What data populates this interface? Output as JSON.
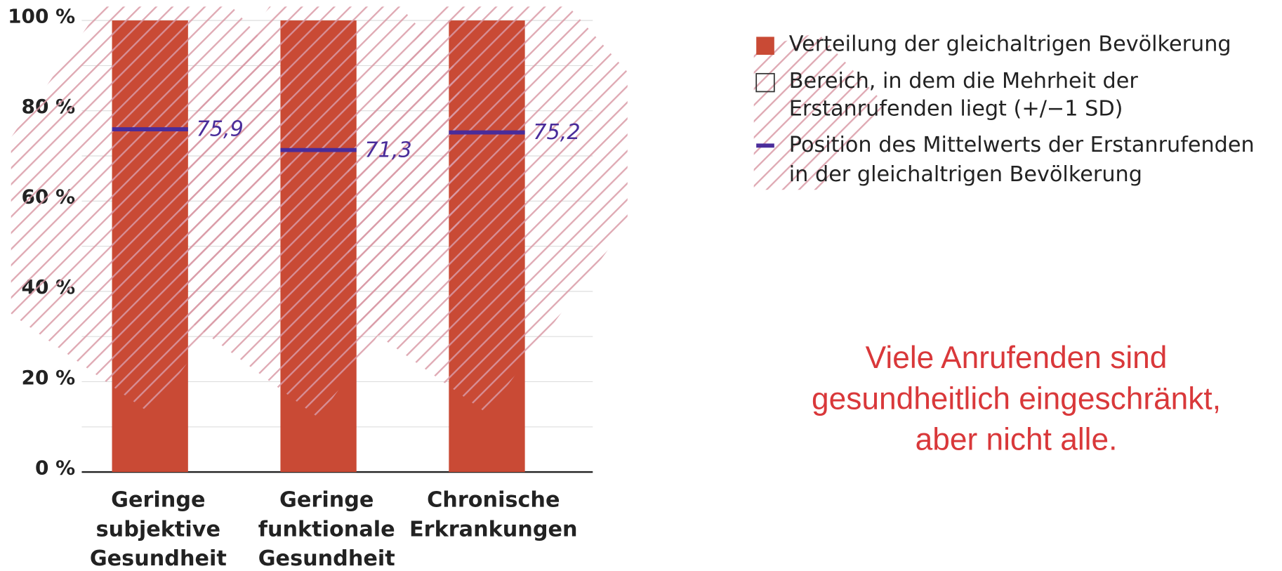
{
  "chart_data": {
    "type": "bar",
    "categories": [
      [
        "Geringe",
        "subjektive",
        "Gesundheit"
      ],
      [
        "Geringe",
        "funktionale",
        "Gesundheit"
      ],
      [
        "Chronische",
        "Erkrankungen"
      ]
    ],
    "series": [
      {
        "name": "Verteilung der gleichaltrigen Bevölkerung",
        "color": "#c94a35",
        "values": [
          100,
          100,
          100
        ]
      },
      {
        "name": [
          "Bereich, in dem die Mehrheit der",
          "Erstanrufenden liegt (+/−1 SD)"
        ],
        "color": "#d99aa6",
        "range_low": [
          13,
          12,
          13
        ],
        "range_high": [
          100,
          100,
          100
        ]
      },
      {
        "name": [
          "Position des Mittelwerts der Erstanrufenden",
          "in der gleichaltrigen Bevölkerung"
        ],
        "color": "#4a2c9a",
        "values": [
          75.9,
          71.3,
          75.2
        ],
        "value_labels": [
          "75,9",
          "71,3",
          "75,2"
        ]
      }
    ],
    "ylim": [
      0,
      100
    ],
    "yticks": [
      {
        "value": 0,
        "label": "0 %"
      },
      {
        "value": 20,
        "label": "20 %"
      },
      {
        "value": 40,
        "label": "40 %"
      },
      {
        "value": 60,
        "label": "60 %"
      },
      {
        "value": 80,
        "label": "80 %"
      },
      {
        "value": 100,
        "label": "100 %"
      }
    ],
    "minor_yticks": [
      10,
      30,
      50,
      70,
      90
    ],
    "grid": true,
    "legend": "top-right",
    "annotation": [
      "Viele Anrufenden sind",
      "gesundheitlich eingeschränkt,",
      "aber nicht alle."
    ]
  }
}
